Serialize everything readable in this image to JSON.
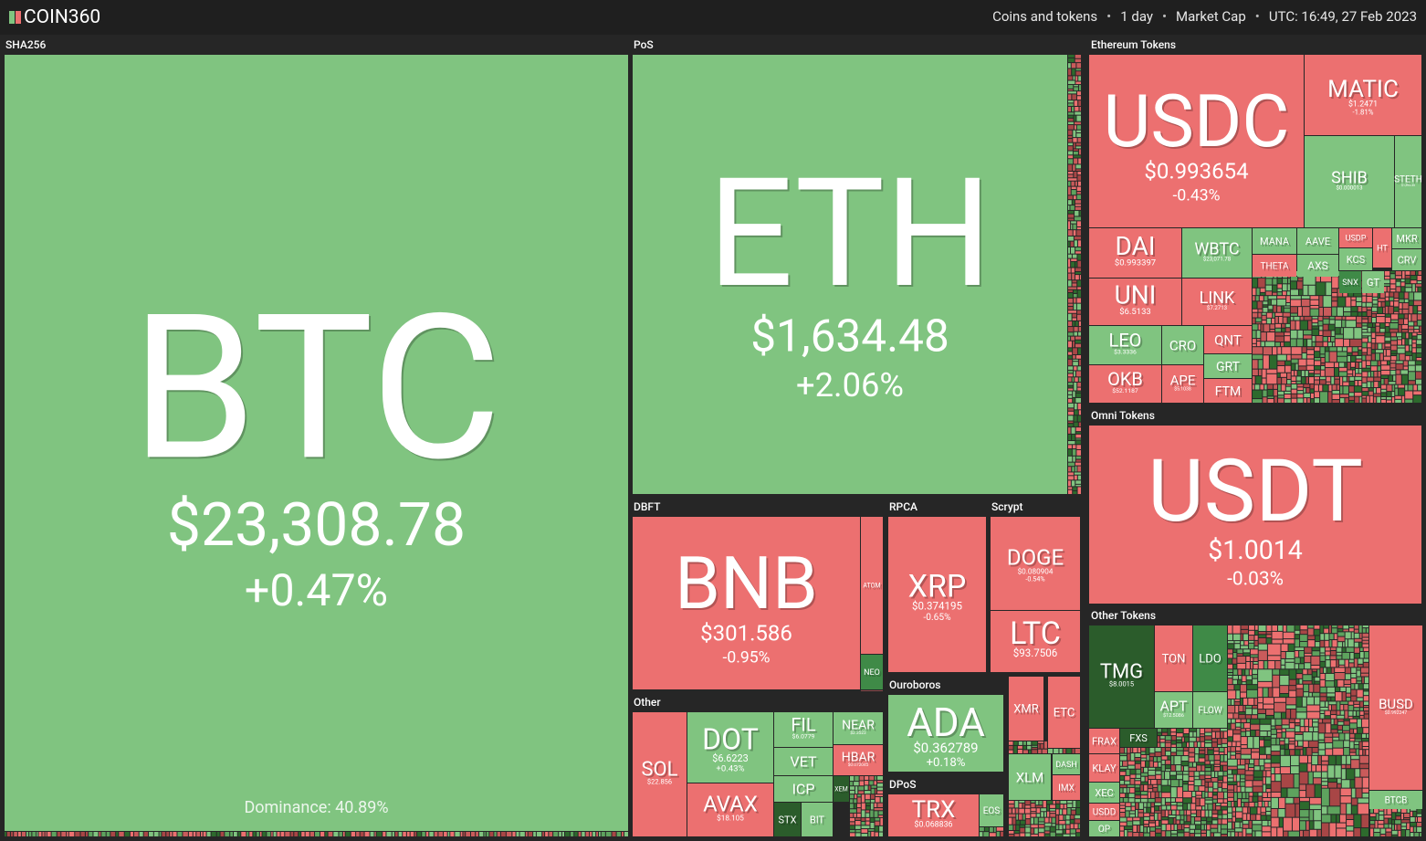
{
  "header": {
    "logo": "COIN360",
    "filters": [
      "Coins and tokens",
      "1 day",
      "Market Cap",
      "UTC: 16:49, 27 Feb 2023"
    ]
  },
  "groups": [
    {
      "name": "SHA256",
      "tiles": [
        {
          "symbol": "BTC",
          "price": "$23,308.78",
          "change": "+0.47%",
          "note": "Dominance: 40.89%",
          "color": "#80c480"
        }
      ]
    },
    {
      "name": "PoS",
      "tiles": [
        {
          "symbol": "ETH",
          "price": "$1,634.48",
          "change": "+2.06%",
          "color": "#80c480"
        }
      ]
    },
    {
      "name": "Ethereum Tokens",
      "tiles": [
        {
          "symbol": "USDC",
          "price": "$0.993654",
          "change": "-0.43%",
          "color": "#ec7070"
        },
        {
          "symbol": "MATIC",
          "price": "$1.2471",
          "change": "-1.81%",
          "color": "#ec7070"
        },
        {
          "symbol": "SHIB",
          "price": "$0.000013",
          "color": "#80c480"
        },
        {
          "symbol": "STETH",
          "price": "$1,593.35",
          "color": "#80c480"
        },
        {
          "symbol": "DAI",
          "price": "$0.993397",
          "color": "#ec7070"
        },
        {
          "symbol": "WBTC",
          "price": "$23,071.78",
          "color": "#80c480"
        },
        {
          "symbol": "UNI",
          "price": "$6.5133",
          "color": "#ec7070"
        },
        {
          "symbol": "LINK",
          "price": "$7.2713",
          "color": "#ec7070"
        },
        {
          "symbol": "LEO",
          "price": "$3.3336",
          "color": "#80c480"
        },
        {
          "symbol": "CRO",
          "color": "#80c480"
        },
        {
          "symbol": "QNT",
          "color": "#ec7070"
        },
        {
          "symbol": "GRT",
          "color": "#80c480"
        },
        {
          "symbol": "OKB",
          "price": "$52.1187",
          "color": "#ec7070"
        },
        {
          "symbol": "APE",
          "price": "$5.1038",
          "color": "#ec7070"
        },
        {
          "symbol": "FTM",
          "color": "#ec7070"
        },
        {
          "symbol": "MANA",
          "color": "#80c480"
        },
        {
          "symbol": "THETA",
          "color": "#ec7070"
        },
        {
          "symbol": "AAVE",
          "color": "#80c480"
        },
        {
          "symbol": "AXS",
          "color": "#80c480"
        },
        {
          "symbol": "USDP",
          "color": "#ec7070"
        },
        {
          "symbol": "HT",
          "color": "#ec7070"
        },
        {
          "symbol": "MKR",
          "color": "#80c480"
        },
        {
          "symbol": "KCS",
          "color": "#80c480"
        },
        {
          "symbol": "CRV",
          "color": "#80c480"
        },
        {
          "symbol": "SNX",
          "color": "#3f8a47"
        },
        {
          "symbol": "GT",
          "color": "#80c480"
        }
      ]
    },
    {
      "name": "Omni Tokens",
      "tiles": [
        {
          "symbol": "USDT",
          "price": "$1.0014",
          "change": "-0.03%",
          "color": "#ec7070"
        }
      ]
    },
    {
      "name": "Other Tokens",
      "tiles": [
        {
          "symbol": "TMG",
          "price": "$8.0015",
          "color": "#2b5c2b"
        },
        {
          "symbol": "TON",
          "color": "#ec7070"
        },
        {
          "symbol": "LDO",
          "color": "#3f8a47"
        },
        {
          "symbol": "APT",
          "price": "$12.5086",
          "color": "#80c480"
        },
        {
          "symbol": "FLOW",
          "color": "#80c480"
        },
        {
          "symbol": "BUSD",
          "price": "$0.992247",
          "color": "#ec7070"
        },
        {
          "symbol": "BTCB",
          "color": "#80c480"
        },
        {
          "symbol": "FRAX",
          "color": "#ec7070"
        },
        {
          "symbol": "KLAY",
          "color": "#ec7070"
        },
        {
          "symbol": "XEC",
          "color": "#80c480"
        },
        {
          "symbol": "USDD",
          "color": "#ec7070"
        },
        {
          "symbol": "OP",
          "color": "#80c480"
        },
        {
          "symbol": "FXS",
          "color": "#2b5c2b"
        }
      ]
    },
    {
      "name": "DBFT",
      "tiles": [
        {
          "symbol": "BNB",
          "price": "$301.586",
          "change": "-0.95%",
          "color": "#ec7070"
        },
        {
          "symbol": "ATOM",
          "color": "#ec7070"
        },
        {
          "symbol": "NEO",
          "color": "#3f8a47"
        }
      ]
    },
    {
      "name": "RPCA",
      "tiles": [
        {
          "symbol": "XRP",
          "price": "$0.374195",
          "change": "-0.65%",
          "color": "#ec7070"
        }
      ]
    },
    {
      "name": "Scrypt",
      "tiles": [
        {
          "symbol": "DOGE",
          "price": "$0.080904",
          "change": "-0.54%",
          "color": "#ec7070"
        },
        {
          "symbol": "LTC",
          "price": "$93.7506",
          "color": "#ec7070"
        }
      ]
    },
    {
      "name": "Other",
      "tiles": [
        {
          "symbol": "SOL",
          "price": "$22.856",
          "color": "#ec7070"
        },
        {
          "symbol": "DOT",
          "price": "$6.6223",
          "change": "+0.43%",
          "color": "#80c480"
        },
        {
          "symbol": "AVAX",
          "price": "$18.105",
          "color": "#ec7070"
        },
        {
          "symbol": "FIL",
          "price": "$6.0779",
          "color": "#80c480"
        },
        {
          "symbol": "VET",
          "color": "#80c480"
        },
        {
          "symbol": "NEAR",
          "price": "$2.3523",
          "color": "#80c480"
        },
        {
          "symbol": "HBAR",
          "price": "$0.072045",
          "color": "#ec7070"
        },
        {
          "symbol": "ICP",
          "color": "#80c480"
        },
        {
          "symbol": "STX",
          "color": "#2b5c2b"
        },
        {
          "symbol": "BIT",
          "color": "#80c480"
        },
        {
          "symbol": "XEM",
          "color": "#2b5c2b"
        }
      ]
    },
    {
      "name": "Ouroboros",
      "tiles": [
        {
          "symbol": "ADA",
          "price": "$0.362789",
          "change": "+0.18%",
          "color": "#80c480"
        }
      ]
    },
    {
      "name": "DPoS",
      "tiles": [
        {
          "symbol": "TRX",
          "price": "$0.068836",
          "color": "#ec7070"
        },
        {
          "symbol": "EOS",
          "color": "#80c480"
        }
      ]
    },
    {
      "tiles": [
        {
          "symbol": "XMR",
          "color": "#ec7070"
        },
        {
          "symbol": "ETC",
          "color": "#ec7070"
        },
        {
          "symbol": "XLM",
          "color": "#80c480"
        },
        {
          "symbol": "DASH",
          "color": "#80c480"
        },
        {
          "symbol": "IMX",
          "color": "#ec7070"
        }
      ]
    }
  ]
}
